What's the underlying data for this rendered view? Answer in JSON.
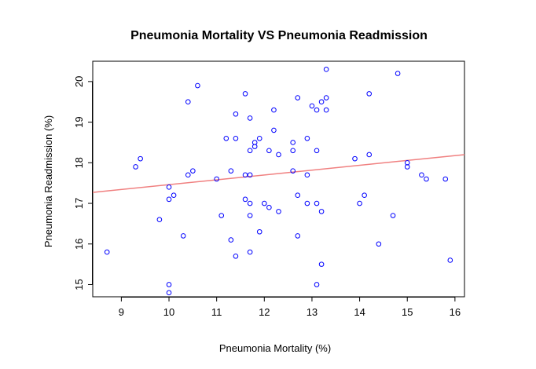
{
  "chart_data": {
    "type": "scatter",
    "title": "Pneumonia Mortality VS Pneumonia Readmission",
    "xlabel": "Pneumonia Mortality (%)",
    "ylabel": "Pneumonia Readmission (%)",
    "xlim": [
      8.4,
      16.2
    ],
    "ylim": [
      14.7,
      20.5
    ],
    "xticks": [
      "9",
      "10",
      "11",
      "12",
      "13",
      "14",
      "15",
      "16"
    ],
    "yticks": [
      "15",
      "16",
      "17",
      "18",
      "19",
      "20"
    ],
    "grid": false,
    "point_color": "#0000ff",
    "trendline_color": "#f08080",
    "trendline": {
      "x": [
        8.4,
        16.2
      ],
      "y": [
        17.27,
        18.2
      ]
    },
    "points": [
      [
        8.7,
        15.8
      ],
      [
        9.3,
        17.9
      ],
      [
        9.4,
        18.1
      ],
      [
        9.8,
        16.6
      ],
      [
        10.0,
        17.1
      ],
      [
        10.0,
        17.4
      ],
      [
        10.0,
        15.0
      ],
      [
        10.0,
        14.8
      ],
      [
        10.1,
        17.2
      ],
      [
        10.3,
        16.2
      ],
      [
        10.4,
        19.5
      ],
      [
        10.4,
        17.7
      ],
      [
        10.5,
        17.8
      ],
      [
        10.6,
        19.9
      ],
      [
        11.0,
        17.6
      ],
      [
        11.1,
        16.7
      ],
      [
        11.2,
        18.6
      ],
      [
        11.3,
        17.8
      ],
      [
        11.3,
        16.1
      ],
      [
        11.4,
        19.2
      ],
      [
        11.4,
        18.6
      ],
      [
        11.4,
        15.7
      ],
      [
        11.6,
        19.7
      ],
      [
        11.6,
        17.7
      ],
      [
        11.6,
        17.1
      ],
      [
        11.7,
        19.1
      ],
      [
        11.7,
        18.3
      ],
      [
        11.7,
        17.7
      ],
      [
        11.7,
        17.0
      ],
      [
        11.7,
        16.7
      ],
      [
        11.7,
        15.8
      ],
      [
        11.8,
        18.5
      ],
      [
        11.8,
        18.4
      ],
      [
        11.9,
        18.6
      ],
      [
        11.9,
        16.3
      ],
      [
        12.0,
        17.0
      ],
      [
        12.1,
        18.3
      ],
      [
        12.1,
        16.9
      ],
      [
        12.2,
        19.3
      ],
      [
        12.2,
        18.8
      ],
      [
        12.3,
        18.2
      ],
      [
        12.3,
        16.8
      ],
      [
        12.6,
        18.5
      ],
      [
        12.6,
        18.3
      ],
      [
        12.6,
        17.8
      ],
      [
        12.7,
        19.6
      ],
      [
        12.7,
        17.2
      ],
      [
        12.7,
        16.2
      ],
      [
        12.9,
        18.6
      ],
      [
        12.9,
        17.7
      ],
      [
        12.9,
        17.0
      ],
      [
        13.0,
        19.4
      ],
      [
        13.1,
        19.3
      ],
      [
        13.1,
        18.3
      ],
      [
        13.1,
        17.0
      ],
      [
        13.1,
        15.0
      ],
      [
        13.2,
        19.5
      ],
      [
        13.2,
        16.8
      ],
      [
        13.2,
        15.5
      ],
      [
        13.3,
        20.3
      ],
      [
        13.3,
        19.6
      ],
      [
        13.3,
        19.3
      ],
      [
        13.9,
        18.1
      ],
      [
        14.0,
        17.0
      ],
      [
        14.1,
        17.2
      ],
      [
        14.2,
        19.7
      ],
      [
        14.2,
        18.2
      ],
      [
        14.4,
        16.0
      ],
      [
        14.7,
        16.7
      ],
      [
        14.8,
        20.2
      ],
      [
        15.0,
        18.0
      ],
      [
        15.0,
        17.9
      ],
      [
        15.3,
        17.7
      ],
      [
        15.4,
        17.6
      ],
      [
        15.8,
        17.6
      ],
      [
        15.9,
        15.6
      ]
    ]
  }
}
